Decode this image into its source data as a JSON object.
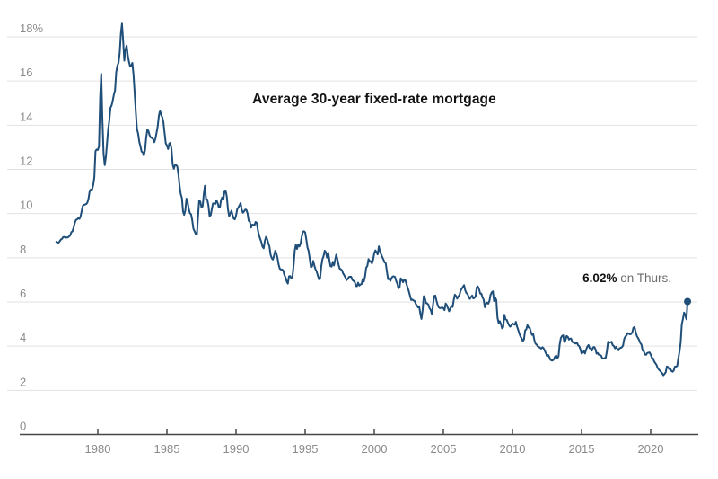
{
  "chart_data": {
    "type": "line",
    "title": "Average 30-year fixed-rate mortgage",
    "xlabel": "",
    "ylabel": "",
    "grid": true,
    "legend": false,
    "end_dot": true,
    "annotation": {
      "value": "6.02%",
      "suffix": " on Thurs.",
      "x": 2022.67,
      "y": 6.02
    },
    "y_axis": {
      "min": 0,
      "max": 18,
      "tick_step": 2,
      "ticks": [
        0,
        2,
        4,
        6,
        8,
        10,
        12,
        14,
        16,
        18
      ],
      "tick_labels": [
        "0",
        "2",
        "4",
        "6",
        "8",
        "10",
        "12",
        "14",
        "16",
        "18%"
      ]
    },
    "x_axis": {
      "min": 1977,
      "max": 2023.3,
      "ticks": [
        1980,
        1985,
        1990,
        1995,
        2000,
        2005,
        2010,
        2015,
        2020
      ],
      "tick_labels": [
        "1980",
        "1985",
        "1990",
        "1995",
        "2000",
        "2005",
        "2010",
        "2015",
        "2020"
      ]
    },
    "colors": {
      "line": "#1f4e79",
      "grid": "#e2e2e2",
      "axis": "#474747",
      "tick_label": "#8a8a8a",
      "title": "#121212",
      "annotation_value": "#121212",
      "annotation_suffix": "#6e6e6e"
    },
    "series": [
      {
        "name": "30-year fixed-rate mortgage (%)",
        "x_start": 1977.0,
        "x_step_years": 0.083333,
        "unit": "percent",
        "values": [
          8.72,
          8.67,
          8.69,
          8.75,
          8.83,
          8.86,
          8.94,
          8.94,
          8.9,
          8.92,
          8.92,
          8.96,
          9.02,
          9.16,
          9.2,
          9.36,
          9.57,
          9.71,
          9.74,
          9.79,
          9.76,
          9.86,
          10.11,
          10.35,
          10.39,
          10.41,
          10.43,
          10.5,
          10.69,
          11.04,
          11.09,
          11.09,
          11.3,
          11.64,
          12.83,
          12.9,
          12.88,
          13.04,
          15.28,
          16.33,
          14.26,
          12.71,
          12.19,
          12.56,
          13.2,
          13.79,
          14.21,
          14.79,
          14.9,
          15.13,
          15.4,
          15.58,
          16.4,
          16.7,
          16.83,
          17.29,
          18.16,
          18.6,
          17.83,
          16.92,
          17.4,
          17.6,
          17.16,
          16.89,
          16.68,
          16.7,
          16.82,
          16.27,
          15.43,
          14.61,
          13.83,
          13.62,
          13.25,
          13.04,
          12.8,
          12.78,
          12.63,
          12.87,
          13.43,
          13.81,
          13.73,
          13.54,
          13.44,
          13.42,
          13.37,
          13.23,
          13.39,
          13.65,
          13.94,
          14.42,
          14.67,
          14.47,
          14.35,
          14.13,
          13.64,
          13.18,
          13.08,
          12.92,
          13.17,
          13.2,
          12.91,
          12.22,
          12.03,
          12.19,
          12.19,
          12.14,
          11.78,
          11.26,
          10.88,
          10.71,
          10.08,
          9.94,
          10.14,
          10.68,
          10.51,
          10.2,
          10.01,
          9.97,
          9.7,
          9.31,
          9.2,
          9.08,
          9.04,
          9.83,
          10.6,
          10.54,
          10.28,
          10.33,
          10.89,
          11.26,
          10.65,
          10.64,
          10.38,
          9.89,
          9.93,
          10.2,
          10.46,
          10.46,
          10.43,
          10.6,
          10.48,
          10.3,
          10.27,
          10.61,
          10.73,
          10.65,
          11.03,
          11.05,
          10.77,
          10.2,
          9.88,
          9.99,
          10.13,
          9.95,
          9.77,
          9.74,
          9.9,
          10.2,
          10.27,
          10.37,
          10.48,
          10.16,
          10.04,
          10.1,
          10.18,
          10.17,
          10.01,
          9.67,
          9.64,
          9.37,
          9.5,
          9.49,
          9.47,
          9.62,
          9.58,
          9.24,
          9.01,
          8.86,
          8.71,
          8.5,
          8.43,
          8.76,
          8.94,
          8.85,
          8.67,
          8.51,
          8.13,
          7.98,
          7.92,
          8.09,
          8.31,
          8.21,
          7.99,
          7.68,
          7.5,
          7.47,
          7.47,
          7.42,
          7.21,
          7.11,
          6.92,
          6.83,
          7.16,
          7.17,
          7.06,
          7.15,
          7.68,
          8.32,
          8.6,
          8.4,
          8.61,
          8.51,
          8.64,
          8.93,
          9.17,
          9.2,
          9.15,
          8.83,
          8.46,
          8.32,
          7.96,
          7.57,
          7.61,
          7.86,
          7.64,
          7.48,
          7.38,
          7.2,
          7.03,
          7.08,
          7.62,
          7.93,
          8.07,
          8.32,
          8.25,
          8.0,
          8.23,
          7.92,
          7.62,
          7.6,
          7.82,
          7.65,
          7.9,
          8.14,
          7.94,
          7.69,
          7.5,
          7.48,
          7.43,
          7.29,
          7.21,
          7.1,
          6.99,
          7.04,
          7.13,
          7.14,
          7.14,
          7.0,
          6.95,
          6.92,
          6.72,
          6.71,
          6.87,
          6.74,
          6.79,
          6.81,
          7.04,
          6.92,
          7.15,
          7.55,
          7.63,
          7.94,
          7.82,
          7.85,
          7.74,
          7.91,
          8.21,
          8.33,
          8.24,
          8.15,
          8.52,
          8.29,
          8.15,
          8.03,
          7.91,
          7.8,
          7.75,
          7.38,
          7.03,
          7.05,
          6.95,
          7.08,
          7.15,
          7.16,
          7.13,
          6.95,
          6.82,
          6.62,
          6.66,
          7.07,
          7.0,
          6.89,
          7.01,
          6.99,
          6.81,
          6.65,
          6.49,
          6.29,
          6.09,
          6.11,
          6.07,
          6.05,
          5.92,
          5.84,
          5.75,
          5.81,
          5.48,
          5.23,
          5.63,
          6.26,
          6.15,
          5.95,
          5.93,
          5.88,
          5.71,
          5.64,
          5.45,
          5.83,
          6.27,
          6.29,
          6.06,
          5.87,
          5.75,
          5.72,
          5.73,
          5.75,
          5.71,
          5.63,
          5.93,
          5.86,
          5.72,
          5.58,
          5.7,
          5.82,
          5.77,
          6.07,
          6.33,
          6.27,
          6.15,
          6.25,
          6.32,
          6.51,
          6.6,
          6.68,
          6.76,
          6.52,
          6.4,
          6.36,
          6.24,
          6.14,
          6.22,
          6.29,
          6.16,
          6.18,
          6.26,
          6.66,
          6.7,
          6.57,
          6.38,
          6.38,
          6.21,
          6.1,
          5.76,
          5.92,
          5.97,
          5.92,
          6.04,
          6.32,
          6.43,
          6.48,
          6.04,
          6.2,
          6.09,
          5.29,
          5.05,
          5.13,
          5.0,
          4.81,
          4.86,
          5.42,
          5.22,
          5.19,
          5.06,
          4.95,
          4.88,
          4.93,
          5.03,
          4.99,
          4.97,
          5.1,
          4.89,
          4.74,
          4.56,
          4.43,
          4.35,
          4.23,
          4.3,
          4.71,
          4.76,
          4.95,
          4.84,
          4.84,
          4.64,
          4.51,
          4.55,
          4.27,
          4.11,
          4.07,
          3.99,
          3.96,
          3.92,
          3.89,
          3.95,
          3.91,
          3.8,
          3.68,
          3.55,
          3.6,
          3.5,
          3.38,
          3.35,
          3.35,
          3.41,
          3.53,
          3.57,
          3.45,
          3.54,
          4.07,
          4.37,
          4.46,
          4.49,
          4.19,
          4.26,
          4.46,
          4.43,
          4.3,
          4.34,
          4.34,
          4.19,
          4.16,
          4.13,
          4.12,
          4.16,
          4.04,
          4.0,
          3.86,
          3.67,
          3.71,
          3.77,
          3.67,
          3.84,
          3.98,
          4.05,
          3.91,
          3.89,
          3.8,
          3.94,
          3.96,
          3.87,
          3.66,
          3.69,
          3.61,
          3.6,
          3.57,
          3.44,
          3.44,
          3.46,
          3.47,
          3.77,
          4.2,
          4.15,
          4.17,
          4.2,
          4.05,
          4.01,
          3.9,
          3.97,
          3.88,
          3.81,
          3.9,
          3.92,
          3.95,
          4.03,
          4.33,
          4.44,
          4.47,
          4.59,
          4.57,
          4.53,
          4.55,
          4.63,
          4.83,
          4.87,
          4.64,
          4.46,
          4.37,
          4.27,
          4.14,
          4.07,
          3.8,
          3.77,
          3.62,
          3.61,
          3.69,
          3.7,
          3.72,
          3.62,
          3.47,
          3.45,
          3.31,
          3.23,
          3.16,
          3.02,
          2.94,
          2.89,
          2.83,
          2.77,
          2.68,
          2.74,
          2.81,
          3.08,
          3.06,
          2.96,
          2.98,
          2.87,
          2.84,
          2.9,
          3.07,
          3.07,
          3.1,
          3.45,
          3.76,
          4.17,
          4.98,
          5.23,
          5.52,
          5.41,
          5.22,
          6.02
        ]
      }
    ]
  }
}
